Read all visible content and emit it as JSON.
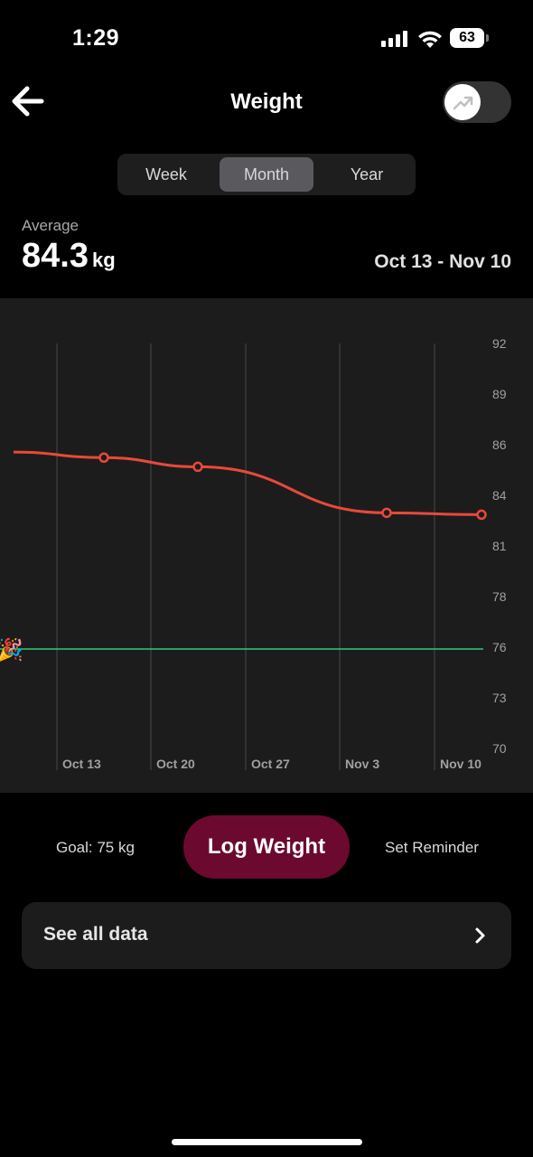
{
  "status_bar": {
    "time": "1:29",
    "battery": "63"
  },
  "header": {
    "title": "Weight"
  },
  "range_tabs": [
    {
      "label": "Week",
      "active": false
    },
    {
      "label": "Month",
      "active": true
    },
    {
      "label": "Year",
      "active": false
    }
  ],
  "summary": {
    "average_label": "Average",
    "average_value": "84.3",
    "average_unit": "kg",
    "date_range": "Oct 13 - Nov 10"
  },
  "chart_data": {
    "type": "line",
    "x_tick_labels": [
      "Oct 13",
      "Oct 20",
      "Oct 27",
      "Nov 3",
      "Nov 10"
    ],
    "y_tick_labels": [
      "92",
      "89",
      "86",
      "84",
      "81",
      "78",
      "76",
      "73",
      "70"
    ],
    "series": [
      {
        "values": [
          {
            "x": "Oct 13",
            "y": 85.8,
            "marker": true
          },
          {
            "x": "Oct 20",
            "y": 85.3,
            "marker": true
          },
          {
            "x": "Nov 3",
            "y": 82.8,
            "marker": true
          },
          {
            "x": "Nov 10",
            "y": 82.7,
            "marker": true
          }
        ],
        "line_starts_at": {
          "x": "before Oct 13",
          "y": 86.1
        },
        "color": "#e8493a"
      }
    ],
    "goal_line": {
      "y": 75.4,
      "color": "#2ecc71",
      "icon": "party-popper-icon"
    },
    "ylim": [
      70,
      92
    ],
    "grid": "vertical"
  },
  "actions": {
    "goal_text": "Goal: 75 kg",
    "log_button": "Log Weight",
    "reminder_button": "Set Reminder",
    "see_all": "See all data"
  },
  "colors": {
    "accent": "#6b0a2e",
    "line": "#e8493a",
    "goal": "#2ecc71"
  }
}
